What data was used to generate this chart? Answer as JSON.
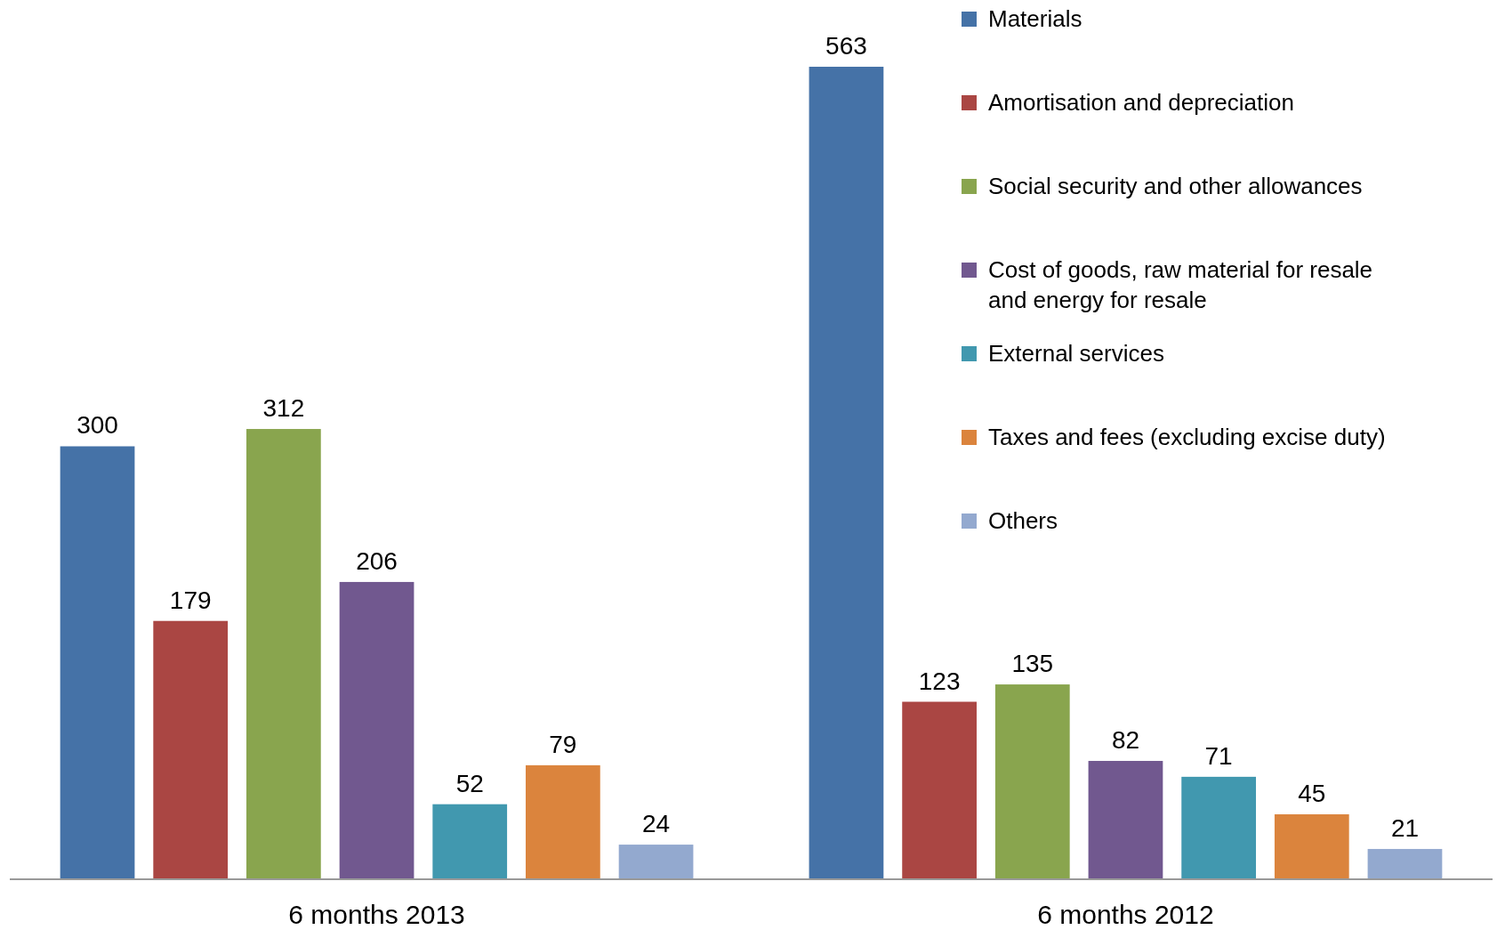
{
  "chart_data": {
    "type": "bar",
    "categories": [
      "6 months 2013",
      "6 months 2012"
    ],
    "series": [
      {
        "name": "Materials",
        "color": "#4572a7",
        "values": [
          300,
          563
        ]
      },
      {
        "name": "Amortisation and depreciation",
        "color": "#aa4643",
        "values": [
          179,
          123
        ]
      },
      {
        "name": "Social security and other allowances",
        "color": "#89a54e",
        "values": [
          312,
          135
        ]
      },
      {
        "name": "Cost of goods, raw material for resale and energy for resale",
        "color": "#71588f",
        "values": [
          206,
          82
        ]
      },
      {
        "name": "External services",
        "color": "#4198af",
        "values": [
          52,
          71
        ]
      },
      {
        "name": "Taxes and fees (excluding excise duty)",
        "color": "#db843d",
        "values": [
          79,
          45
        ]
      },
      {
        "name": "Others",
        "color": "#93a9cf",
        "values": [
          24,
          21
        ]
      }
    ],
    "data_labels": true,
    "legend": "right"
  }
}
